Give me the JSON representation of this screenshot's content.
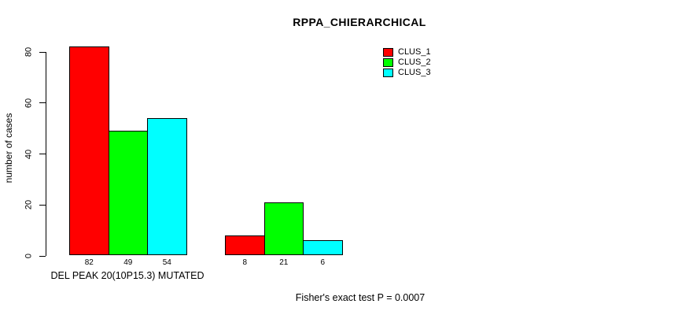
{
  "chart_data": {
    "type": "bar",
    "title": "RPPA_CHIERARCHICAL",
    "ylabel": "number of cases",
    "xlabel": "",
    "ylim": [
      0,
      80
    ],
    "yticks": [
      0,
      20,
      40,
      60,
      80
    ],
    "categories": [
      "DEL PEAK 20(10P15.3) MUTATED",
      ""
    ],
    "series": [
      {
        "name": "CLUS_1",
        "color": "#ff0000",
        "values": [
          82,
          8
        ]
      },
      {
        "name": "CLUS_2",
        "color": "#00ff00",
        "values": [
          49,
          21
        ]
      },
      {
        "name": "CLUS_3",
        "color": "#00ffff",
        "values": [
          54,
          6
        ]
      }
    ],
    "grid": false,
    "legend_position": "top-right",
    "annotation": "Fisher's exact test P = 0.0007"
  },
  "colors": {
    "background": "#ffffff",
    "axis": "#000000",
    "bar_border": "#000000",
    "text": "#000000"
  }
}
